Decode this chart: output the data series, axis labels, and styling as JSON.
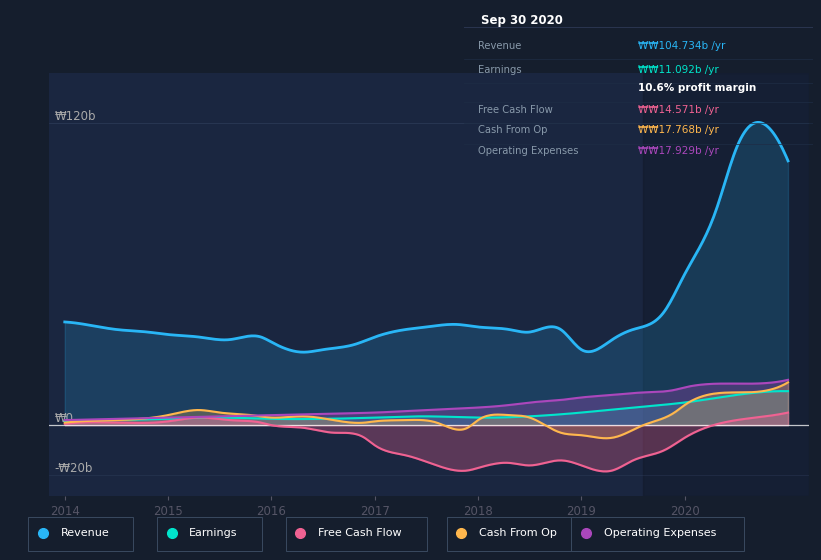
{
  "background_color": "#151e2d",
  "plot_bg_color": "#1a2640",
  "colors": {
    "revenue": "#29b6f6",
    "earnings": "#00e5cc",
    "free_cash_flow": "#f06292",
    "cash_from_op": "#ffb74d",
    "operating_expenses": "#ab47bc"
  },
  "x_ticks": [
    "2014",
    "2015",
    "2016",
    "2017",
    "2018",
    "2019",
    "2020"
  ],
  "y_ticks_labels": [
    "₩120b",
    "₩0",
    "-₩20b"
  ],
  "y_ticks_values": [
    120,
    0,
    -20
  ],
  "ylim": [
    -28,
    140
  ],
  "xlim_start": 2013.85,
  "xlim_end": 2021.2,
  "info_box": {
    "title": "Sep 30 2020",
    "rows": [
      {
        "label": "Revenue",
        "value": "₩₩104.734b /yr",
        "color": "#29b6f6"
      },
      {
        "label": "Earnings",
        "value": "₩₩11.092b /yr",
        "color": "#00e5cc"
      },
      {
        "label": "",
        "value": "10.6% profit margin",
        "color": "#ffffff",
        "bold": true
      },
      {
        "label": "Free Cash Flow",
        "value": "₩₩14.571b /yr",
        "color": "#f06292"
      },
      {
        "label": "Cash From Op",
        "value": "₩₩17.768b /yr",
        "color": "#ffb74d"
      },
      {
        "label": "Operating Expenses",
        "value": "₩₩17.929b /yr",
        "color": "#ab47bc"
      }
    ]
  },
  "legend": [
    {
      "label": "Revenue",
      "color": "#29b6f6"
    },
    {
      "label": "Earnings",
      "color": "#00e5cc"
    },
    {
      "label": "Free Cash Flow",
      "color": "#f06292"
    },
    {
      "label": "Cash From Op",
      "color": "#ffb74d"
    },
    {
      "label": "Operating Expenses",
      "color": "#ab47bc"
    }
  ]
}
